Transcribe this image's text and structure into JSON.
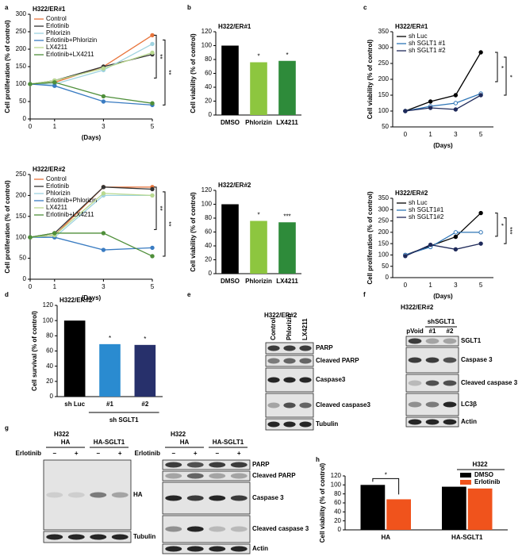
{
  "panel_letters": [
    "a",
    "b",
    "c",
    "d",
    "e",
    "f",
    "g",
    "h"
  ],
  "chart_data": [
    {
      "type": "line",
      "title": "H322/ER#1",
      "y_label": "Cell proliferation (% of control)",
      "x_label": "(Days)",
      "x": [
        0,
        1,
        3,
        5
      ],
      "xlim": [
        0,
        5
      ],
      "xticks": [
        0,
        1,
        3,
        5
      ],
      "ylim": [
        0,
        300
      ],
      "yticks": [
        0,
        50,
        100,
        150,
        200,
        250,
        300
      ],
      "annotations": [
        "**",
        "**"
      ],
      "series": [
        {
          "name": "Control",
          "color": "#e8743b",
          "values": [
            100,
            105,
            150,
            240
          ]
        },
        {
          "name": "Erlotinib",
          "color": "#333333",
          "values": [
            100,
            110,
            150,
            185
          ]
        },
        {
          "name": "Phlorizin",
          "color": "#9fd3e0",
          "values": [
            100,
            100,
            140,
            215
          ]
        },
        {
          "name": "Erlotinib+Phlorizin",
          "color": "#3a7cc2",
          "values": [
            100,
            95,
            50,
            40
          ]
        },
        {
          "name": "LX4211",
          "color": "#b9d98f",
          "values": [
            100,
            110,
            145,
            190
          ]
        },
        {
          "name": "Erlotinib+LX4211",
          "color": "#4f8f3a",
          "values": [
            100,
            105,
            65,
            45
          ]
        }
      ]
    },
    {
      "type": "line",
      "title": "H322/ER#2",
      "y_label": "Cell proliferation (% of control)",
      "x_label": "(Days)",
      "x": [
        0,
        1,
        3,
        5
      ],
      "xlim": [
        0,
        5
      ],
      "xticks": [
        0,
        1,
        3,
        5
      ],
      "ylim": [
        0,
        250
      ],
      "yticks": [
        0,
        50,
        100,
        150,
        200,
        250
      ],
      "annotations": [
        "**",
        "**"
      ],
      "series": [
        {
          "name": "Control",
          "color": "#e8743b",
          "values": [
            100,
            105,
            220,
            220
          ]
        },
        {
          "name": "Erlotinib",
          "color": "#333333",
          "values": [
            100,
            110,
            220,
            215
          ]
        },
        {
          "name": "Phlorizin",
          "color": "#9fd3e0",
          "values": [
            100,
            100,
            200,
            200
          ]
        },
        {
          "name": "Erlotinib+Phlorizin",
          "color": "#3a7cc2",
          "values": [
            100,
            100,
            70,
            75
          ]
        },
        {
          "name": "LX4211",
          "color": "#b9d98f",
          "values": [
            100,
            105,
            205,
            200
          ]
        },
        {
          "name": "Erlotinib+LX4211",
          "color": "#4f8f3a",
          "values": [
            100,
            110,
            110,
            55
          ]
        }
      ]
    },
    {
      "type": "bar",
      "title": "H322/ER#1",
      "y_label": "Cell viability (% of control)",
      "categories": [
        "DMSO",
        "Phlorizin",
        "LX4211"
      ],
      "values": [
        100,
        76,
        78
      ],
      "colors": [
        "#000000",
        "#8dc63f",
        "#2e8b3a"
      ],
      "bar_annotations": [
        null,
        "*",
        "*"
      ],
      "ylim": [
        0,
        120
      ],
      "yticks": [
        0,
        20,
        40,
        60,
        80,
        100,
        120
      ]
    },
    {
      "type": "bar",
      "title": "H322/ER#2",
      "y_label": "Cell viability (% of control)",
      "categories": [
        "DMSO",
        "Phlorizin",
        "LX4211"
      ],
      "values": [
        100,
        76,
        74
      ],
      "colors": [
        "#000000",
        "#8dc63f",
        "#2e8b3a"
      ],
      "bar_annotations": [
        null,
        "*",
        "***"
      ],
      "ylim": [
        0,
        120
      ],
      "yticks": [
        0,
        20,
        40,
        60,
        80,
        100,
        120
      ]
    },
    {
      "type": "line",
      "title": "H322/ER#1",
      "y_label": "Cell viability (% of control)",
      "x_label": "(Days)",
      "categories": [
        "0",
        "1",
        "3",
        "5"
      ],
      "ylim": [
        50,
        350
      ],
      "yticks": [
        50,
        100,
        150,
        200,
        250,
        300,
        350
      ],
      "annotations": [
        "*",
        "*"
      ],
      "series": [
        {
          "name": "sh Luc",
          "color": "#000000",
          "values": [
            100,
            130,
            150,
            285
          ]
        },
        {
          "name": "sh SGLT1 #1",
          "color": "#2e75b6",
          "values": [
            100,
            115,
            125,
            155
          ]
        },
        {
          "name": "sh SGLT1 #2",
          "color": "#1f2a5a",
          "values": [
            100,
            110,
            105,
            150
          ]
        }
      ]
    },
    {
      "type": "line",
      "title": "H322/ER#2",
      "y_label": "Cell proliferation (% of control)",
      "x_label": "(Days)",
      "categories": [
        "0",
        "1",
        "3",
        "5"
      ],
      "ylim": [
        0,
        350
      ],
      "yticks": [
        0,
        50,
        100,
        150,
        200,
        250,
        300,
        350
      ],
      "annotations": [
        "*",
        "***"
      ],
      "series": [
        {
          "name": "sh Luc",
          "color": "#000000",
          "values": [
            100,
            140,
            180,
            285
          ]
        },
        {
          "name": "sh SGLT1#1",
          "color": "#2e75b6",
          "values": [
            100,
            135,
            200,
            200
          ]
        },
        {
          "name": "sh SGLT1#2",
          "color": "#1f2a5a",
          "values": [
            95,
            145,
            125,
            150
          ]
        }
      ]
    },
    {
      "type": "bar",
      "title": "H322/ER#2",
      "y_label": "Cell survival (% of control)",
      "categories": [
        "sh Luc",
        "#1",
        "#2"
      ],
      "group_label": "sh SGLT1",
      "values": [
        100,
        69,
        68
      ],
      "colors": [
        "#000000",
        "#2a8bd0",
        "#27306b"
      ],
      "bar_annotations": [
        null,
        "*",
        "*"
      ],
      "ylim": [
        0,
        120
      ],
      "yticks": [
        0,
        20,
        40,
        60,
        80,
        100,
        120
      ]
    },
    {
      "type": "bar",
      "legend_title": "H322",
      "y_label": "Cell viability (% of control)",
      "categories": [
        "HA",
        "HA-SGLT1"
      ],
      "annotations": [
        "*"
      ],
      "ylim": [
        0,
        120
      ],
      "yticks": [
        0,
        20,
        40,
        60,
        80,
        100,
        120
      ],
      "series": [
        {
          "name": "DMSO",
          "color": "#000000",
          "values": [
            100,
            96
          ]
        },
        {
          "name": "Erlotinib",
          "color": "#f0531c",
          "values": [
            68,
            92
          ]
        }
      ]
    }
  ],
  "blots": [
    {
      "title": "H322/ER#2",
      "lanes": [
        "Control",
        "Phlorizin",
        "LX4211"
      ],
      "lane_colors": [
        "#000000",
        "#5cb82e",
        "#2e8b3a"
      ],
      "bands": [
        "PARP",
        "Cleaved PARP",
        "Caspase3",
        "Cleaved caspase3",
        "Tubulin"
      ]
    },
    {
      "title": "H322/ER#2",
      "group": "shSGLT1",
      "lanes": [
        "pVoid",
        "#1",
        "#2"
      ],
      "bands": [
        "SGLT1",
        "Caspase 3",
        "Cleaved caspase 3",
        "LC3β",
        "Actin"
      ]
    },
    {
      "title": "H322",
      "treatment": "Erlotinib",
      "groups": [
        "HA",
        "HA-SGLT1"
      ],
      "signs": [
        "−",
        "+",
        "−",
        "+"
      ],
      "bands": [
        "HA",
        "Tubulin"
      ]
    },
    {
      "title": "H322",
      "treatment": "Erlotinib",
      "groups": [
        "HA",
        "HA-SGLT1"
      ],
      "signs": [
        "−",
        "+",
        "−",
        "+"
      ],
      "bands": [
        "PARP",
        "Cleaved PARP",
        "Caspase 3",
        "Cleaved caspase 3",
        "Actin"
      ]
    }
  ]
}
